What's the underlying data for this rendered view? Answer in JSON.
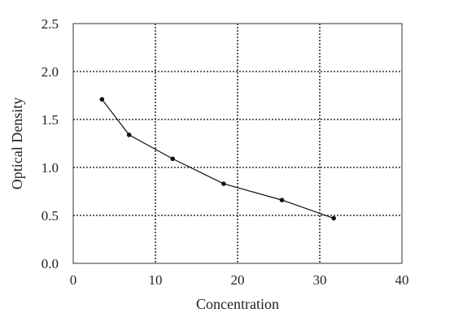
{
  "chart_data": {
    "type": "line",
    "title": "",
    "xlabel": "Concentration",
    "ylabel": "Optical Density",
    "xlim": [
      0,
      40
    ],
    "ylim": [
      0,
      2.5
    ],
    "x_ticks": [
      0,
      10,
      20,
      30,
      40
    ],
    "y_ticks": [
      0.0,
      0.5,
      1.0,
      1.5,
      2.0,
      2.5
    ],
    "x_tick_labels": [
      "0",
      "10",
      "20",
      "30",
      "40"
    ],
    "y_tick_labels": [
      "0.0",
      "0.5",
      "1.0",
      "1.5",
      "2.0",
      "2.5"
    ],
    "grid": true,
    "grid_style": "dotted",
    "legend": false,
    "series": [
      {
        "x": [
          3.5,
          6.8,
          12.1,
          18.3,
          25.4,
          31.7
        ],
        "y": [
          1.71,
          1.34,
          1.09,
          0.83,
          0.66,
          0.47
        ],
        "color": "#111111",
        "marker": "circle"
      }
    ]
  }
}
